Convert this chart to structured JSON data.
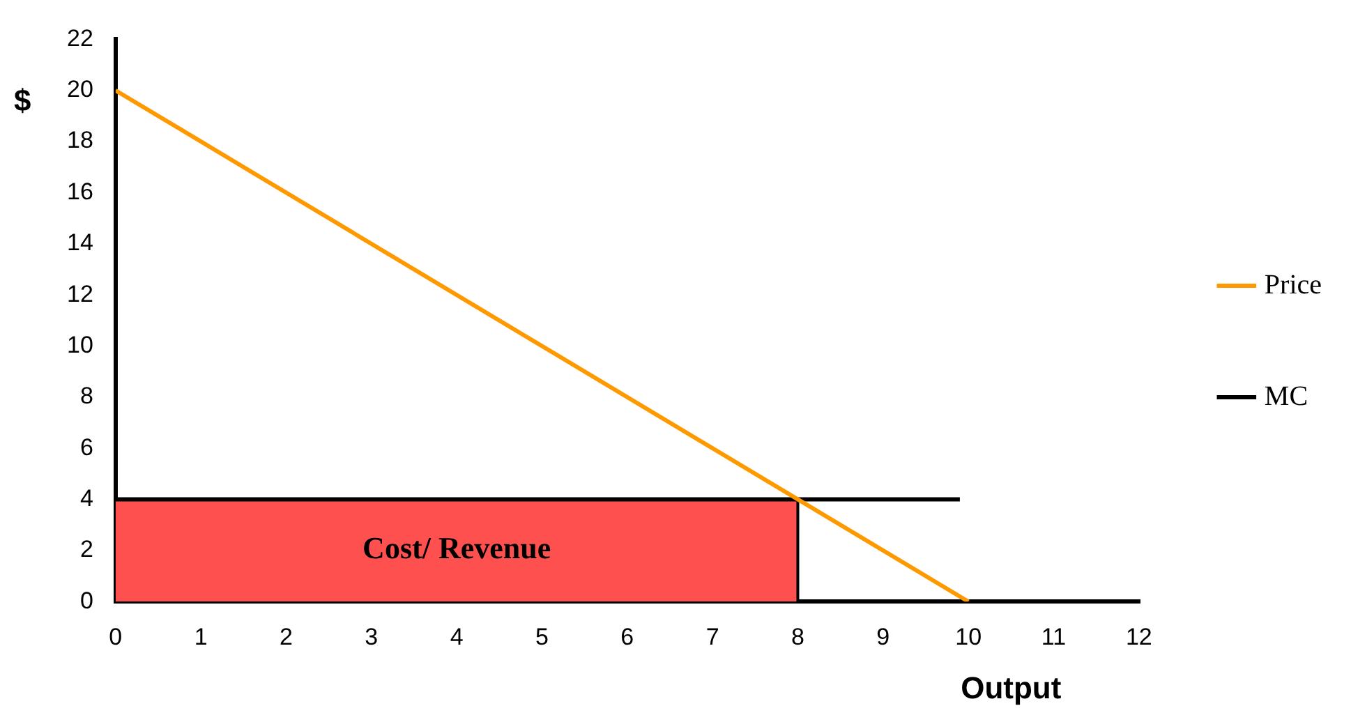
{
  "chart_data": {
    "type": "line",
    "xlabel": "Output",
    "ylabel": "$",
    "xlim": [
      0,
      12
    ],
    "ylim": [
      0,
      22
    ],
    "xticks": [
      0,
      1,
      2,
      3,
      4,
      5,
      6,
      7,
      8,
      9,
      10,
      11,
      12
    ],
    "yticks": [
      0,
      2,
      4,
      6,
      8,
      10,
      12,
      14,
      16,
      18,
      20,
      22
    ],
    "grid": false,
    "legend": "right",
    "marker": "none",
    "line_style": "solid",
    "series": [
      {
        "type": "area",
        "color": "#ff5050",
        "x": [
          0,
          8,
          8
        ],
        "values": [
          4,
          4,
          0
        ]
      },
      {
        "name": "Price",
        "color": "#ff9900",
        "x": [
          0,
          10
        ],
        "values": [
          20,
          0
        ]
      },
      {
        "name": "MC",
        "color": "#000000",
        "x": [
          0,
          9.9
        ],
        "values": [
          4,
          4
        ]
      }
    ],
    "annotations": [
      "Cost/ Revenue"
    ]
  }
}
